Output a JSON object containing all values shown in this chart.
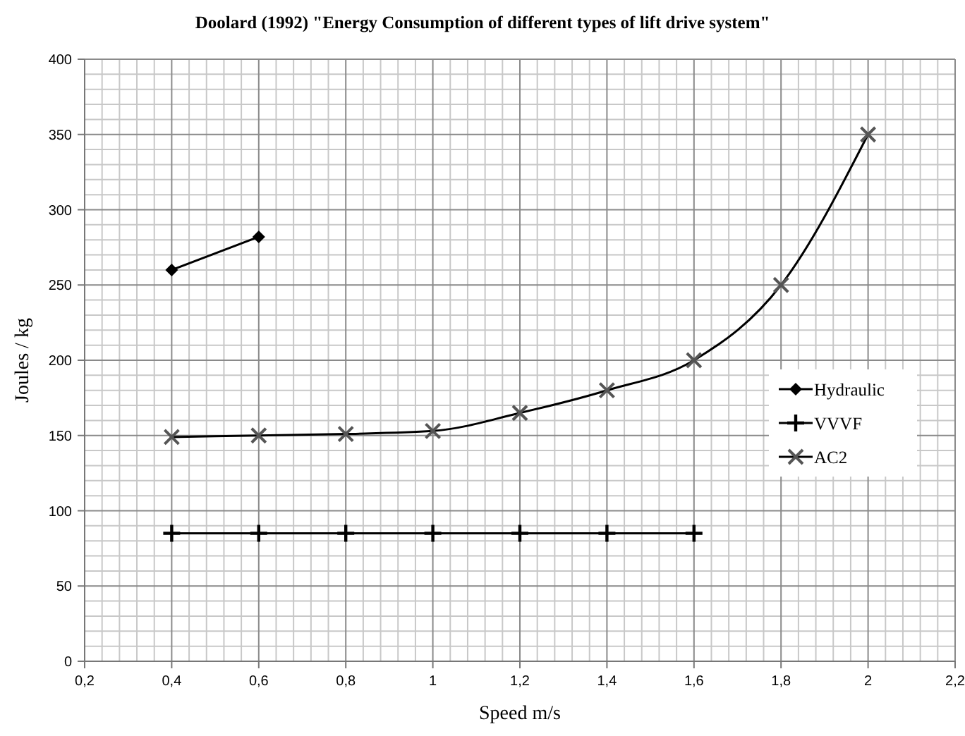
{
  "chart_data": {
    "type": "line",
    "title": "Doolard (1992) \"Energy Consumption of different types of lift drive system\"",
    "xlabel": "Speed m/s",
    "ylabel": "Joules / kg",
    "xlim": [
      0.2,
      2.2
    ],
    "ylim": [
      0,
      400
    ],
    "xticks": [
      {
        "value": 0.2,
        "label": "0,2"
      },
      {
        "value": 0.4,
        "label": "0,4"
      },
      {
        "value": 0.6,
        "label": "0,6"
      },
      {
        "value": 0.8,
        "label": "0,8"
      },
      1,
      {
        "value": 1.2,
        "label": "1,2"
      },
      {
        "value": 1.4,
        "label": "1,4"
      },
      {
        "value": 1.6,
        "label": "1,6"
      },
      {
        "value": 1.8,
        "label": "1,8"
      },
      2,
      {
        "value": 2.2,
        "label": "2,2"
      }
    ],
    "yticks": [
      0,
      50,
      100,
      150,
      200,
      250,
      300,
      350,
      400
    ],
    "grid": true,
    "legend": "right",
    "series": [
      {
        "name": "Hydraulic",
        "color": "#000000",
        "marker": "diamond",
        "x": [
          0.4,
          0.6
        ],
        "values": [
          260,
          282
        ]
      },
      {
        "name": "VVVF",
        "color": "#000000",
        "marker": "cross",
        "x": [
          0.4,
          0.6,
          0.8,
          1,
          1.2,
          1.4,
          1.6
        ],
        "values": [
          85,
          85,
          85,
          85,
          85,
          85,
          85
        ]
      },
      {
        "name": "AC2",
        "color": "#000000",
        "marker": "cross",
        "x": [
          0.4,
          0.6,
          0.8,
          1,
          1.2,
          1.4,
          1.6,
          1.8,
          2
        ],
        "values": [
          149,
          150,
          151,
          153,
          165,
          180,
          200,
          250,
          350
        ]
      }
    ]
  }
}
